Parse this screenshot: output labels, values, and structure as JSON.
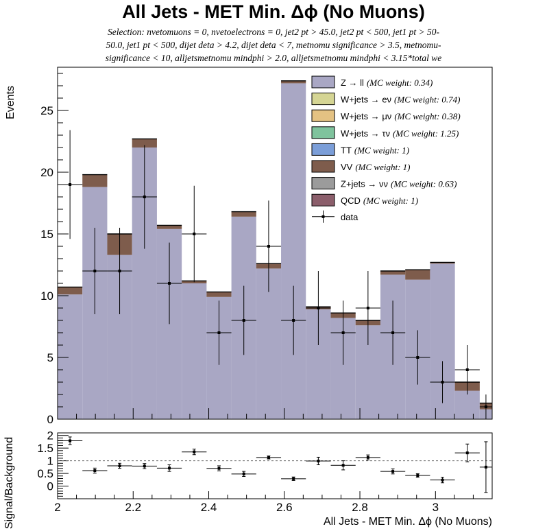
{
  "chart_data": [
    {
      "type": "bar",
      "stacked": true,
      "title": "All Jets - MET Min. Δϕ (No Muons)",
      "subtitle_lines": [
        "Selection: nvetomuons = 0, nvetoelectrons = 0, jet2 pt > 45.0, jet2 pt < 500, jet1 pt > 50-",
        "50.0, jet1 pt < 500, dijet deta > 4.2, dijet deta < 7, metnomu significance > 3.5, metnomu-",
        "significance < 10, alljetsmetnomu mindphi > 2.0, alljetsmetnomu mindphi < 3.15*total we"
      ],
      "ylabel": "Events",
      "xlim": [
        2.0,
        3.15
      ],
      "ylim": [
        0,
        28.5
      ],
      "y_ticks": [
        "0",
        "5",
        "10",
        "15",
        "20",
        "25"
      ],
      "bin_edges": [
        2.0,
        2.0657,
        2.1314,
        2.1971,
        2.2629,
        2.3286,
        2.3943,
        2.46,
        2.5257,
        2.5914,
        2.6571,
        2.7229,
        2.7886,
        2.8543,
        2.92,
        2.9857,
        3.0514,
        3.1171,
        3.15
      ],
      "series": [
        {
          "name": "Z → ll",
          "weight": "(MC weight: 0.34)",
          "color": "#a9a7c4",
          "values": [
            10.1,
            18.8,
            13.3,
            22.0,
            15.4,
            11.0,
            9.9,
            16.4,
            12.2,
            27.2,
            8.9,
            8.2,
            7.6,
            11.7,
            11.3,
            12.6,
            2.3,
            0.8
          ]
        },
        {
          "name": "W+jets → eν",
          "weight": "(MC weight: 0.74)",
          "color": "#d5d594",
          "values": []
        },
        {
          "name": "W+jets → μν",
          "weight": "(MC weight: 0.38)",
          "color": "#e4c283",
          "values": []
        },
        {
          "name": "W+jets → τν",
          "weight": "(MC weight: 1.25)",
          "color": "#7fc39d",
          "values": []
        },
        {
          "name": "TT",
          "weight": "(MC weight: 1)",
          "color": "#7b9ed8",
          "values": []
        },
        {
          "name": "VV",
          "weight": "(MC weight: 1)",
          "color": "#7e5c4c",
          "values": [
            0.6,
            1.0,
            1.7,
            0.7,
            0.3,
            0.2,
            0.4,
            0.4,
            0.4,
            0.2,
            0.2,
            0.4,
            0.4,
            0.3,
            0.8,
            0.1,
            0.7,
            0.5
          ]
        },
        {
          "name": "Z+jets → νν",
          "weight": "(MC weight: 0.63)",
          "color": "#9b9b9b",
          "values": []
        },
        {
          "name": "QCD",
          "weight": "(MC weight: 1)",
          "color": "#8b5e6b",
          "values": []
        }
      ],
      "data_series": {
        "name": "data",
        "values": [
          19,
          12,
          12,
          18,
          11,
          15,
          7,
          8,
          14,
          8,
          9,
          7,
          9,
          7,
          5,
          3,
          4,
          1
        ],
        "errors": [
          4.4,
          3.5,
          3.5,
          4.2,
          3.3,
          3.9,
          2.6,
          2.8,
          3.7,
          2.8,
          3.0,
          2.6,
          3.0,
          2.6,
          2.2,
          1.7,
          2.0,
          1.0
        ]
      },
      "legend_position": "top-right"
    },
    {
      "type": "scatter",
      "xlabel": "All Jets - MET Min. Δϕ (No Muons)",
      "ylabel": "Signal/Background",
      "xlim": [
        2.0,
        3.15
      ],
      "ylim": [
        -0.5,
        2.1
      ],
      "x_ticks": [
        "2",
        "2.2",
        "2.4",
        "2.6",
        "2.8",
        "3"
      ],
      "y_ticks": [
        "0",
        "0.5",
        "1",
        "1.5",
        "2"
      ],
      "reference_line": 1,
      "ratio": [
        1.79,
        0.61,
        0.8,
        0.79,
        0.71,
        1.35,
        0.7,
        0.48,
        1.13,
        0.29,
        0.99,
        0.82,
        1.13,
        0.58,
        0.42,
        0.24,
        1.31,
        0.75
      ],
      "ratio_errors": [
        0.15,
        0.1,
        0.1,
        0.1,
        0.13,
        0.11,
        0.1,
        0.1,
        0.06,
        0.07,
        0.15,
        0.18,
        0.1,
        0.1,
        0.07,
        0.11,
        0.35,
        1.0
      ]
    }
  ]
}
